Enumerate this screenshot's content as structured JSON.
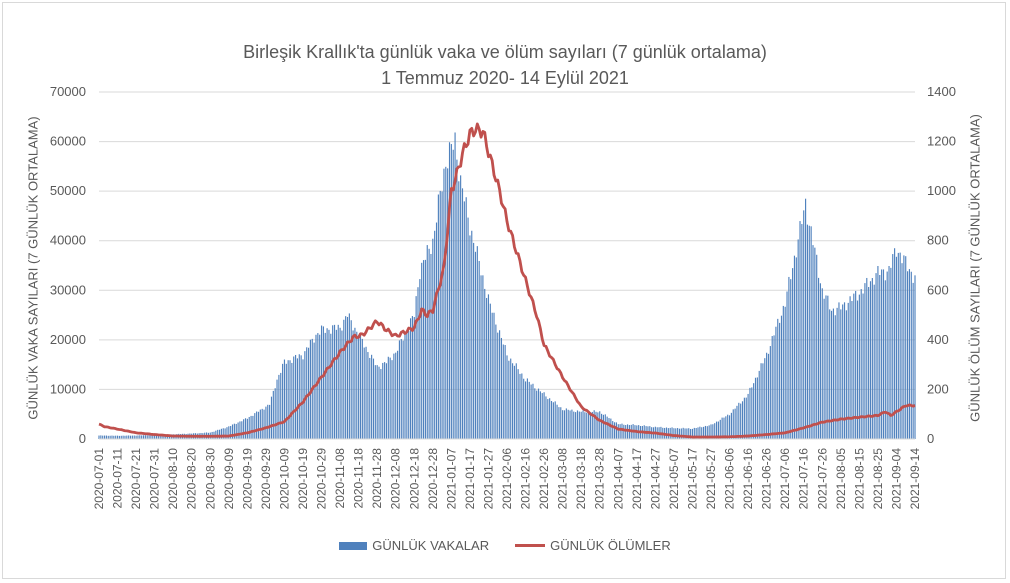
{
  "title": "Birleşik Krallık'ta günlük vaka ve ölüm sayıları (7 günlük ortalama)",
  "subtitle": "1 Temmuz 2020- 14 Eylül 2021",
  "colors": {
    "cases": "#4f81bd",
    "deaths": "#c0504d",
    "grid": "#d9d9d9",
    "text": "#595959"
  },
  "chart_data": {
    "type": "bar",
    "title": "Birleşik Krallık'ta günlük vaka ve ölüm sayıları (7 günlük ortalama)",
    "subtitle": "1 Temmuz 2020- 14 Eylül 2021",
    "xlabel": "",
    "ylabel": "GÜNLÜK VAKA SAYILARI (7 GÜNLÜK ORTALAMA)",
    "ylabel_right": "GÜNLÜK ÖLÜM SAYILARI (7 GÜNLÜK ORTALAMA)",
    "ylim": [
      0,
      70000
    ],
    "ylim_right": [
      0,
      1400
    ],
    "yticks": [
      0,
      10000,
      20000,
      30000,
      40000,
      50000,
      60000,
      70000
    ],
    "yticks_right": [
      0,
      200,
      400,
      600,
      800,
      1000,
      1200,
      1400
    ],
    "xticks": [
      "2020-07-01",
      "2020-07-11",
      "2020-07-21",
      "2020-07-31",
      "2020-08-10",
      "2020-08-20",
      "2020-08-30",
      "2020-09-09",
      "2020-09-19",
      "2020-09-29",
      "2020-10-09",
      "2020-10-19",
      "2020-10-29",
      "2020-11-08",
      "2020-11-18",
      "2020-11-28",
      "2020-12-08",
      "2020-12-18",
      "2020-12-28",
      "2021-01-07",
      "2021-01-17",
      "2021-01-27",
      "2021-02-06",
      "2021-02-16",
      "2021-02-26",
      "2021-03-08",
      "2021-03-18",
      "2021-03-28",
      "2021-04-07",
      "2021-04-17",
      "2021-04-27",
      "2021-05-07",
      "2021-05-17",
      "2021-05-27",
      "2021-06-06",
      "2021-06-16",
      "2021-06-26",
      "2021-07-06",
      "2021-07-16",
      "2021-07-26",
      "2021-08-05",
      "2021-08-15",
      "2021-08-25",
      "2021-09-04",
      "2021-09-14"
    ],
    "grid": true,
    "legend_position": "bottom",
    "series": [
      {
        "name": "GÜNLÜK VAKALAR",
        "type": "bar",
        "axis": "left",
        "points": [
          [
            "2020-07-01",
            700
          ],
          [
            "2020-07-11",
            650
          ],
          [
            "2020-07-21",
            700
          ],
          [
            "2020-07-31",
            800
          ],
          [
            "2020-08-10",
            950
          ],
          [
            "2020-08-20",
            1100
          ],
          [
            "2020-08-30",
            1300
          ],
          [
            "2020-09-09",
            2500
          ],
          [
            "2020-09-19",
            4200
          ],
          [
            "2020-09-29",
            6500
          ],
          [
            "2020-10-01",
            7000
          ],
          [
            "2020-10-05",
            12000
          ],
          [
            "2020-10-09",
            15500
          ],
          [
            "2020-10-19",
            17000
          ],
          [
            "2020-10-26",
            21000
          ],
          [
            "2020-10-29",
            22000
          ],
          [
            "2020-11-08",
            22500
          ],
          [
            "2020-11-12",
            25000
          ],
          [
            "2020-11-18",
            21000
          ],
          [
            "2020-11-28",
            14500
          ],
          [
            "2020-12-03",
            15500
          ],
          [
            "2020-12-08",
            17500
          ],
          [
            "2020-12-18",
            25000
          ],
          [
            "2020-12-21",
            34000
          ],
          [
            "2020-12-28",
            40000
          ],
          [
            "2020-12-31",
            47000
          ],
          [
            "2021-01-04",
            56000
          ],
          [
            "2021-01-09",
            60000
          ],
          [
            "2021-01-12",
            52000
          ],
          [
            "2021-01-17",
            43000
          ],
          [
            "2021-01-27",
            28000
          ],
          [
            "2021-02-06",
            17000
          ],
          [
            "2021-02-16",
            12000
          ],
          [
            "2021-02-26",
            9000
          ],
          [
            "2021-03-08",
            6000
          ],
          [
            "2021-03-18",
            5500
          ],
          [
            "2021-03-28",
            5500
          ],
          [
            "2021-04-07",
            3000
          ],
          [
            "2021-04-17",
            2800
          ],
          [
            "2021-04-27",
            2400
          ],
          [
            "2021-05-07",
            2200
          ],
          [
            "2021-05-17",
            2100
          ],
          [
            "2021-05-27",
            2800
          ],
          [
            "2021-06-06",
            5000
          ],
          [
            "2021-06-16",
            9000
          ],
          [
            "2021-06-26",
            17000
          ],
          [
            "2021-07-06",
            27500
          ],
          [
            "2021-07-17",
            47500
          ],
          [
            "2021-07-26",
            30000
          ],
          [
            "2021-07-31",
            26000
          ],
          [
            "2021-08-05",
            26500
          ],
          [
            "2021-08-15",
            29500
          ],
          [
            "2021-08-25",
            33500
          ],
          [
            "2021-08-31",
            34000
          ],
          [
            "2021-09-04",
            38500
          ],
          [
            "2021-09-08",
            36000
          ],
          [
            "2021-09-14",
            32500
          ]
        ]
      },
      {
        "name": "GÜNLÜK ÖLÜMLER",
        "type": "line",
        "axis": "right",
        "points": [
          [
            "2020-07-01",
            60
          ],
          [
            "2020-07-04",
            50
          ],
          [
            "2020-07-11",
            40
          ],
          [
            "2020-07-21",
            25
          ],
          [
            "2020-07-31",
            18
          ],
          [
            "2020-08-10",
            12
          ],
          [
            "2020-08-20",
            11
          ],
          [
            "2020-08-30",
            11
          ],
          [
            "2020-09-09",
            12
          ],
          [
            "2020-09-19",
            25
          ],
          [
            "2020-09-29",
            45
          ],
          [
            "2020-10-09",
            70
          ],
          [
            "2020-10-19",
            150
          ],
          [
            "2020-10-29",
            250
          ],
          [
            "2020-11-08",
            350
          ],
          [
            "2020-11-15",
            410
          ],
          [
            "2020-11-20",
            420
          ],
          [
            "2020-11-28",
            475
          ],
          [
            "2020-12-03",
            440
          ],
          [
            "2020-12-08",
            415
          ],
          [
            "2020-12-18",
            450
          ],
          [
            "2020-12-22",
            520
          ],
          [
            "2020-12-25",
            500
          ],
          [
            "2020-12-28",
            520
          ],
          [
            "2021-01-03",
            690
          ],
          [
            "2021-01-07",
            1000
          ],
          [
            "2021-01-10",
            1070
          ],
          [
            "2021-01-13",
            1150
          ],
          [
            "2021-01-17",
            1230
          ],
          [
            "2021-01-20",
            1250
          ],
          [
            "2021-01-24",
            1240
          ],
          [
            "2021-01-27",
            1160
          ],
          [
            "2021-02-02",
            1000
          ],
          [
            "2021-02-06",
            880
          ],
          [
            "2021-02-16",
            640
          ],
          [
            "2021-02-22",
            500
          ],
          [
            "2021-02-26",
            380
          ],
          [
            "2021-03-08",
            250
          ],
          [
            "2021-03-18",
            130
          ],
          [
            "2021-03-28",
            75
          ],
          [
            "2021-04-07",
            40
          ],
          [
            "2021-04-17",
            30
          ],
          [
            "2021-04-27",
            24
          ],
          [
            "2021-05-07",
            14
          ],
          [
            "2021-05-17",
            8
          ],
          [
            "2021-05-27",
            8
          ],
          [
            "2021-06-06",
            9
          ],
          [
            "2021-06-16",
            12
          ],
          [
            "2021-06-26",
            18
          ],
          [
            "2021-07-06",
            25
          ],
          [
            "2021-07-16",
            45
          ],
          [
            "2021-07-26",
            68
          ],
          [
            "2021-08-05",
            80
          ],
          [
            "2021-08-15",
            88
          ],
          [
            "2021-08-25",
            95
          ],
          [
            "2021-08-29",
            110
          ],
          [
            "2021-09-01",
            95
          ],
          [
            "2021-09-05",
            115
          ],
          [
            "2021-09-09",
            135
          ],
          [
            "2021-09-14",
            135
          ]
        ]
      }
    ]
  },
  "legend": {
    "cases_label": "GÜNLÜK VAKALAR",
    "deaths_label": "GÜNLÜK ÖLÜMLER"
  }
}
